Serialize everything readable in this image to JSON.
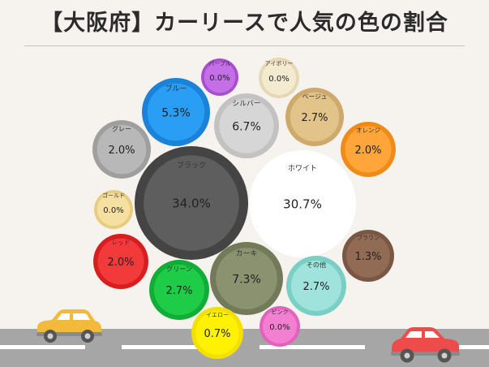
{
  "title": "【大阪府】カーリースで人気の色の割合",
  "chart_data": {
    "type": "bubble",
    "title": "【大阪府】カーリースで人気の色の割合",
    "items": [
      {
        "label": "ブラック",
        "value": "34.0%",
        "color": "#5e5e5e",
        "ring": "#444444"
      },
      {
        "label": "ホワイト",
        "value": "30.7%",
        "color": "#ffffff",
        "ring": "#ffffff"
      },
      {
        "label": "カーキ",
        "value": "7.3%",
        "color": "#8a9270",
        "ring": "#727a5a"
      },
      {
        "label": "シルバー",
        "value": "6.7%",
        "color": "#d6d6d6",
        "ring": "#c2c2c2"
      },
      {
        "label": "ブルー",
        "value": "5.3%",
        "color": "#2a9df4",
        "ring": "#1a82d8"
      },
      {
        "label": "ベージュ",
        "value": "2.7%",
        "color": "#e2c389",
        "ring": "#cfa96b"
      },
      {
        "label": "グリーン",
        "value": "2.7%",
        "color": "#1fcc47",
        "ring": "#12ad36"
      },
      {
        "label": "その他",
        "value": "2.7%",
        "color": "#9fe3dc",
        "ring": "#79cfc6"
      },
      {
        "label": "グレー",
        "value": "2.0%",
        "color": "#b8b8b8",
        "ring": "#9f9f9f"
      },
      {
        "label": "オレンジ",
        "value": "2.0%",
        "color": "#ffa53a",
        "ring": "#f08b18"
      },
      {
        "label": "レッド",
        "value": "2.0%",
        "color": "#f23a3a",
        "ring": "#d81f1f"
      },
      {
        "label": "ブラウン",
        "value": "1.3%",
        "color": "#926b55",
        "ring": "#7a5744"
      },
      {
        "label": "イエロー",
        "value": "0.7%",
        "color": "#fff200",
        "ring": "#f5df00"
      },
      {
        "label": "パープル",
        "value": "0.0%",
        "color": "#c46ee8",
        "ring": "#a84fd0"
      },
      {
        "label": "アイボリー",
        "value": "0.0%",
        "color": "#f4ead0",
        "ring": "#e6d8b4"
      },
      {
        "label": "ゴールド",
        "value": "0.0%",
        "color": "#f5dfa1",
        "ring": "#e8cd80"
      },
      {
        "label": "ピンク",
        "value": "0.0%",
        "color": "#f27fcf",
        "ring": "#e263bd"
      }
    ]
  },
  "colors": {
    "background": "#f6f2ee",
    "road": "#a6a6a6",
    "lane": "#ffffff",
    "car_left": "#f2b93b",
    "car_right": "#ee4b4b"
  }
}
